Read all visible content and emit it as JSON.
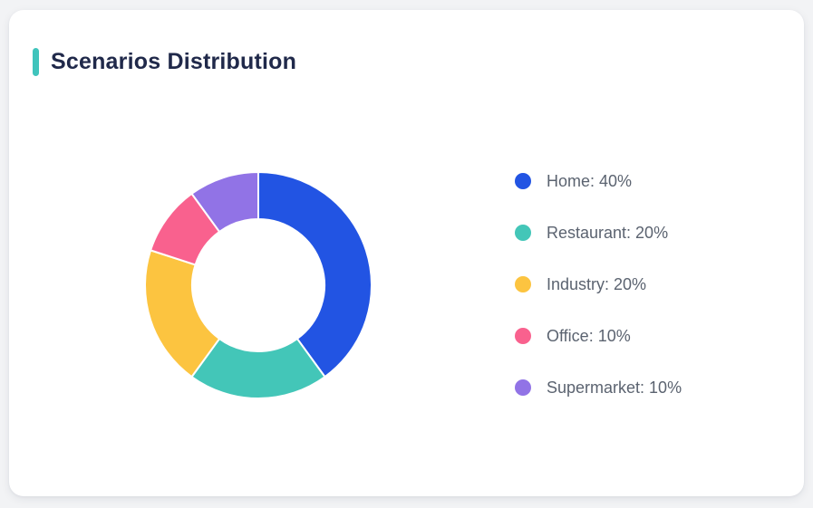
{
  "page": {
    "background_color": "#f2f3f5"
  },
  "card": {
    "title": "Scenarios Distribution",
    "accent_color": "#40c4bc",
    "title_color": "#20294a",
    "background_color": "#ffffff"
  },
  "chart_data": {
    "type": "pie",
    "subtype": "donut",
    "title": "Scenarios Distribution",
    "start_angle": "top",
    "direction": "clockwise",
    "inner_radius_ratio": 0.58,
    "grid": false,
    "legend_position": "right",
    "categories": [
      "Home",
      "Restaurant",
      "Industry",
      "Office",
      "Supermarket"
    ],
    "values": [
      40,
      20,
      20,
      10,
      10
    ],
    "unit": "%",
    "segments": [
      {
        "label": "Home",
        "value": 40,
        "unit": "%",
        "color": "#2254e3",
        "legend_label": "Home: 40%"
      },
      {
        "label": "Restaurant",
        "value": 20,
        "unit": "%",
        "color": "#43c6b8",
        "legend_label": "Restaurant: 20%"
      },
      {
        "label": "Industry",
        "value": 20,
        "unit": "%",
        "color": "#fcc440",
        "legend_label": "Industry: 20%"
      },
      {
        "label": "Office",
        "value": 10,
        "unit": "%",
        "color": "#f9618e",
        "legend_label": "Office: 10%"
      },
      {
        "label": "Supermarket",
        "value": 10,
        "unit": "%",
        "color": "#9173e6",
        "legend_label": "Supermarket: 10%"
      }
    ]
  }
}
